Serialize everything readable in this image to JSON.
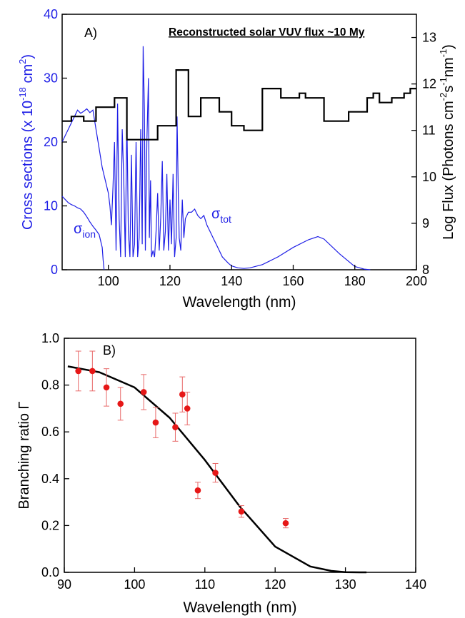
{
  "chart_data": [
    {
      "type": "line",
      "panel_label": "A)",
      "title": "Reconstructed solar VUV flux ~10 My",
      "xlabel": "Wavelength (nm)",
      "ylabel_left": {
        "main": "Cross sections (x 10",
        "sup": "-18",
        "unit": " cm",
        "unit_sup": "2",
        "tail": ")"
      },
      "ylabel_right": {
        "p1": "Log Flux (Photons cm",
        "s1": "-2",
        "p2": "s",
        "s2": "-1",
        "p3": "nm",
        "s3": "-1",
        "p4": ")"
      },
      "xlim": [
        85,
        200
      ],
      "ylim_left": [
        0,
        40
      ],
      "ylim_right": [
        8,
        13.5
      ],
      "xticks": [
        100,
        120,
        140,
        160,
        180,
        200
      ],
      "yticks_left": [
        0,
        10,
        20,
        30,
        40
      ],
      "yticks_right": [
        8,
        9,
        10,
        11,
        12,
        13
      ],
      "colors": {
        "cross_sections": "#1f1fe6",
        "flux": "#000000"
      },
      "annotations": {
        "sigma_tot": {
          "symbol": "σ",
          "sub": "tot"
        },
        "sigma_ion": {
          "symbol": "σ",
          "sub": "ion"
        }
      },
      "series": [
        {
          "name": "σtot",
          "axis": "left",
          "style": "line",
          "x": [
            85,
            86,
            87,
            88,
            89,
            90,
            91,
            92,
            93,
            94,
            95,
            96,
            97,
            98,
            99,
            100,
            100.5,
            101,
            101.5,
            102,
            102.5,
            103,
            103.5,
            104,
            104.5,
            105,
            105.5,
            106,
            106.5,
            107,
            107.5,
            108,
            108.5,
            109,
            109.5,
            110,
            110.5,
            111,
            111.3,
            111.7,
            112,
            112.5,
            113,
            113.3,
            113.7,
            114,
            114.5,
            115,
            115.5,
            116,
            116.5,
            117,
            117.5,
            118,
            118.5,
            119,
            119.5,
            120,
            120.5,
            121,
            121.5,
            122,
            122.3,
            122.7,
            123,
            123.5,
            124,
            124.5,
            125,
            126,
            127,
            128,
            129,
            130,
            131,
            132,
            133,
            134,
            135,
            136,
            137,
            138,
            139,
            140,
            142,
            144,
            146,
            150,
            155,
            160,
            165,
            168,
            170,
            175,
            180,
            183,
            185
          ],
          "y": [
            20,
            21,
            22,
            23,
            24,
            25,
            24.5,
            24.8,
            25.2,
            24.6,
            25,
            22,
            19,
            16,
            14,
            12,
            10,
            7,
            13,
            20,
            3,
            26,
            8,
            2,
            22,
            14,
            2,
            24,
            6,
            2,
            18,
            2,
            4,
            20,
            2,
            5,
            22,
            4,
            35,
            25,
            3,
            20,
            30,
            5,
            14,
            2,
            3,
            2,
            6,
            12,
            3,
            8,
            17,
            3,
            6,
            15,
            3,
            11,
            4,
            15,
            2,
            5,
            24,
            12,
            5,
            3,
            11,
            5,
            8,
            9,
            9,
            9.5,
            8.5,
            8,
            8.5,
            7,
            6,
            5,
            4,
            3,
            2,
            1.5,
            1,
            0.6,
            0.3,
            0.2,
            0.3,
            0.8,
            2,
            3.5,
            4.7,
            5.2,
            4.8,
            2.5,
            0.5,
            0.1,
            0
          ]
        },
        {
          "name": "σion",
          "axis": "left",
          "style": "line",
          "x": [
            85,
            86,
            87,
            88,
            89,
            90,
            91,
            92,
            93,
            94,
            95,
            96,
            97,
            98,
            98.3,
            98.6
          ],
          "y": [
            11.5,
            11,
            10.5,
            10.2,
            10,
            9.7,
            9.5,
            9,
            8.3,
            7.5,
            6.8,
            6.2,
            5.5,
            3.5,
            1.5,
            0
          ]
        },
        {
          "name": "Log Flux",
          "axis": "right",
          "style": "step",
          "x": [
            85,
            88,
            90,
            92,
            94,
            96,
            98,
            100,
            102,
            104,
            106,
            108,
            110,
            112,
            114,
            116,
            118,
            120,
            122,
            124,
            126,
            128,
            130,
            132,
            134,
            136,
            138,
            140,
            142,
            144,
            146,
            148,
            150,
            152,
            154,
            156,
            158,
            160,
            162,
            164,
            166,
            168,
            170,
            172,
            174,
            176,
            178,
            180,
            182,
            184,
            186,
            188,
            190,
            192,
            194,
            196,
            198,
            200
          ],
          "y": [
            11.2,
            11.3,
            11.3,
            11.2,
            11.2,
            11.5,
            11.5,
            11.5,
            11.7,
            11.7,
            10.8,
            10.8,
            10.8,
            10.8,
            10.8,
            11.1,
            11.1,
            11.1,
            12.3,
            12.3,
            11.3,
            11.3,
            11.7,
            11.7,
            11.7,
            11.4,
            11.4,
            11.1,
            11.1,
            11.0,
            11.0,
            11.0,
            11.9,
            11.9,
            11.9,
            11.7,
            11.7,
            11.7,
            11.8,
            11.7,
            11.7,
            11.7,
            11.2,
            11.2,
            11.2,
            11.2,
            11.4,
            11.4,
            11.4,
            11.7,
            11.8,
            11.6,
            11.6,
            11.7,
            11.7,
            11.8,
            11.9,
            11.9
          ]
        }
      ]
    },
    {
      "type": "scatter",
      "panel_label": "B)",
      "title": "",
      "xlabel": "Wavelength (nm)",
      "ylabel": "Branching ratio Γ",
      "xlim": [
        90,
        140
      ],
      "ylim": [
        0,
        1.0
      ],
      "xticks": [
        90,
        100,
        110,
        120,
        130,
        140
      ],
      "yticks": [
        0.0,
        0.2,
        0.4,
        0.6,
        0.8,
        1.0
      ],
      "ytick_labels": [
        "0.0",
        "0.2",
        "0.4",
        "0.6",
        "0.8",
        "1.0"
      ],
      "colors": {
        "points": "#e61717",
        "errorbars": "#e86a6a",
        "fit": "#000000"
      },
      "series": [
        {
          "name": "data",
          "style": "points",
          "x": [
            92,
            94,
            96,
            98,
            101.3,
            103,
            105.8,
            106.8,
            107.5,
            109,
            111.5,
            115.2,
            121.5
          ],
          "y": [
            0.86,
            0.86,
            0.79,
            0.72,
            0.77,
            0.64,
            0.62,
            0.76,
            0.7,
            0.35,
            0.425,
            0.26,
            0.21
          ],
          "err": [
            0.085,
            0.085,
            0.08,
            0.07,
            0.075,
            0.065,
            0.06,
            0.075,
            0.07,
            0.035,
            0.04,
            0.025,
            0.02
          ]
        },
        {
          "name": "fit",
          "style": "line",
          "x": [
            90.5,
            95,
            100,
            105,
            110,
            115,
            120,
            125,
            128,
            130,
            132,
            133
          ],
          "y": [
            0.88,
            0.855,
            0.79,
            0.66,
            0.48,
            0.28,
            0.11,
            0.025,
            0.006,
            0.001,
            0.0,
            0.0
          ]
        }
      ]
    }
  ]
}
